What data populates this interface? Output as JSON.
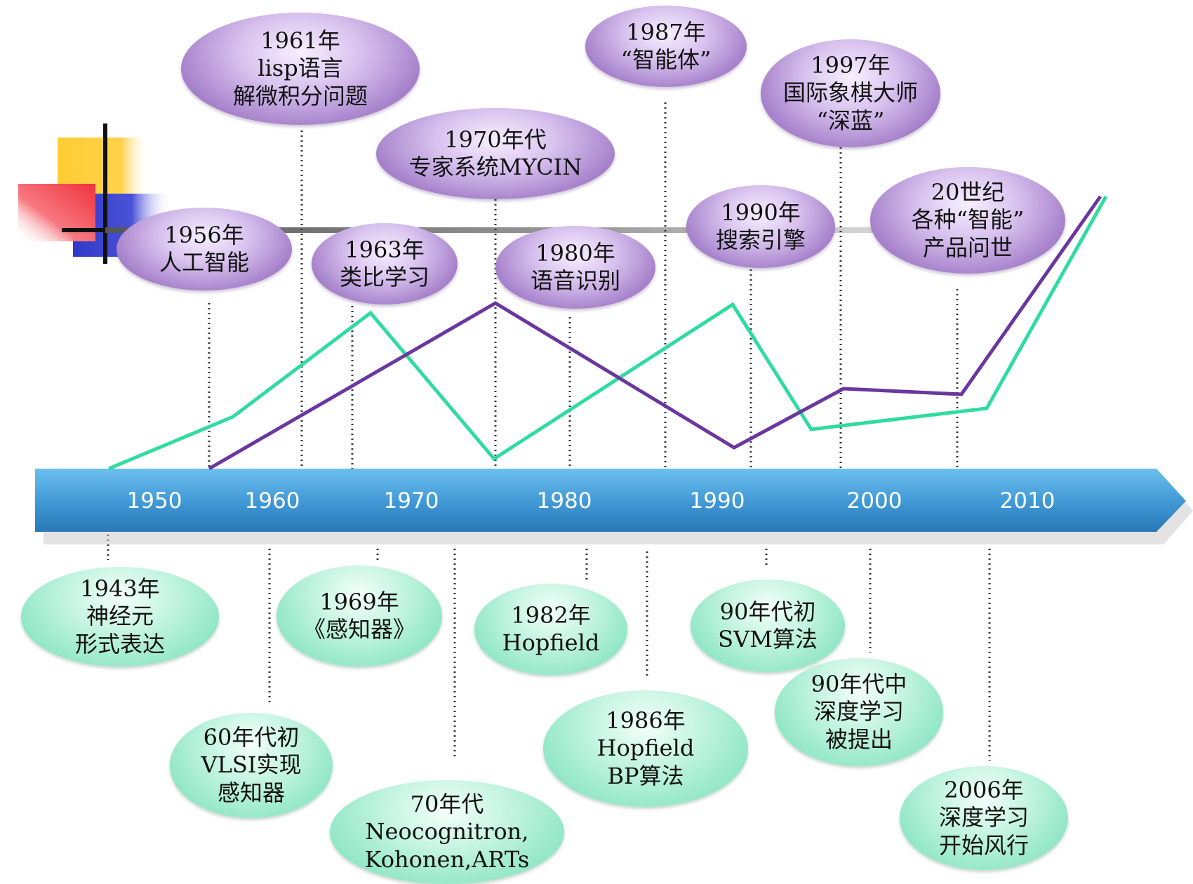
{
  "axis": {
    "ticks": [
      "1950",
      "1960",
      "1970",
      "1980",
      "1990",
      "2000",
      "2010"
    ]
  },
  "events_top": [
    {
      "id": "1956",
      "lines": [
        "1956年",
        "人工智能"
      ]
    },
    {
      "id": "1961",
      "lines": [
        "1961年",
        "lisp语言",
        "解微积分问题"
      ]
    },
    {
      "id": "1963",
      "lines": [
        "1963年",
        "类比学习"
      ]
    },
    {
      "id": "1970s",
      "lines": [
        "1970年代",
        "专家系统MYCIN"
      ]
    },
    {
      "id": "1980",
      "lines": [
        "1980年",
        "语音识别"
      ]
    },
    {
      "id": "1987",
      "lines": [
        "1987年",
        "“智能体”"
      ]
    },
    {
      "id": "1990",
      "lines": [
        "1990年",
        "搜索引擎"
      ]
    },
    {
      "id": "1997",
      "lines": [
        "1997年",
        "国际象棋大师",
        "“深蓝”"
      ]
    },
    {
      "id": "20c",
      "lines": [
        "20世纪",
        "各种“智能”",
        "产品问世"
      ]
    }
  ],
  "events_bottom": [
    {
      "id": "1943",
      "lines": [
        "1943年",
        "神经元",
        "形式表达"
      ]
    },
    {
      "id": "60s-early",
      "lines": [
        "60年代初",
        "VLSI实现",
        "感知器"
      ]
    },
    {
      "id": "1969",
      "lines": [
        "1969年",
        "《感知器》"
      ]
    },
    {
      "id": "70s",
      "lines": [
        "70年代",
        "Neocognitron,",
        "Kohonen,ARTs"
      ]
    },
    {
      "id": "1982",
      "lines": [
        "1982年",
        "Hopfield"
      ]
    },
    {
      "id": "1986",
      "lines": [
        "1986年",
        "Hopfield",
        "BP算法"
      ]
    },
    {
      "id": "90s-early",
      "lines": [
        "90年代初",
        "SVM算法"
      ]
    },
    {
      "id": "90s-mid",
      "lines": [
        "90年代中",
        "深度学习",
        "被提出"
      ]
    },
    {
      "id": "2006",
      "lines": [
        "2006年",
        "深度学习",
        "开始风行"
      ]
    }
  ],
  "colors": {
    "purple_line": "#6a36a0",
    "green_line": "#2fdca0",
    "arrow_blue": "#3f97d4",
    "deco_yellow": "#ffcc33",
    "deco_red": "#f0323c",
    "deco_blue": "#3038c8"
  }
}
